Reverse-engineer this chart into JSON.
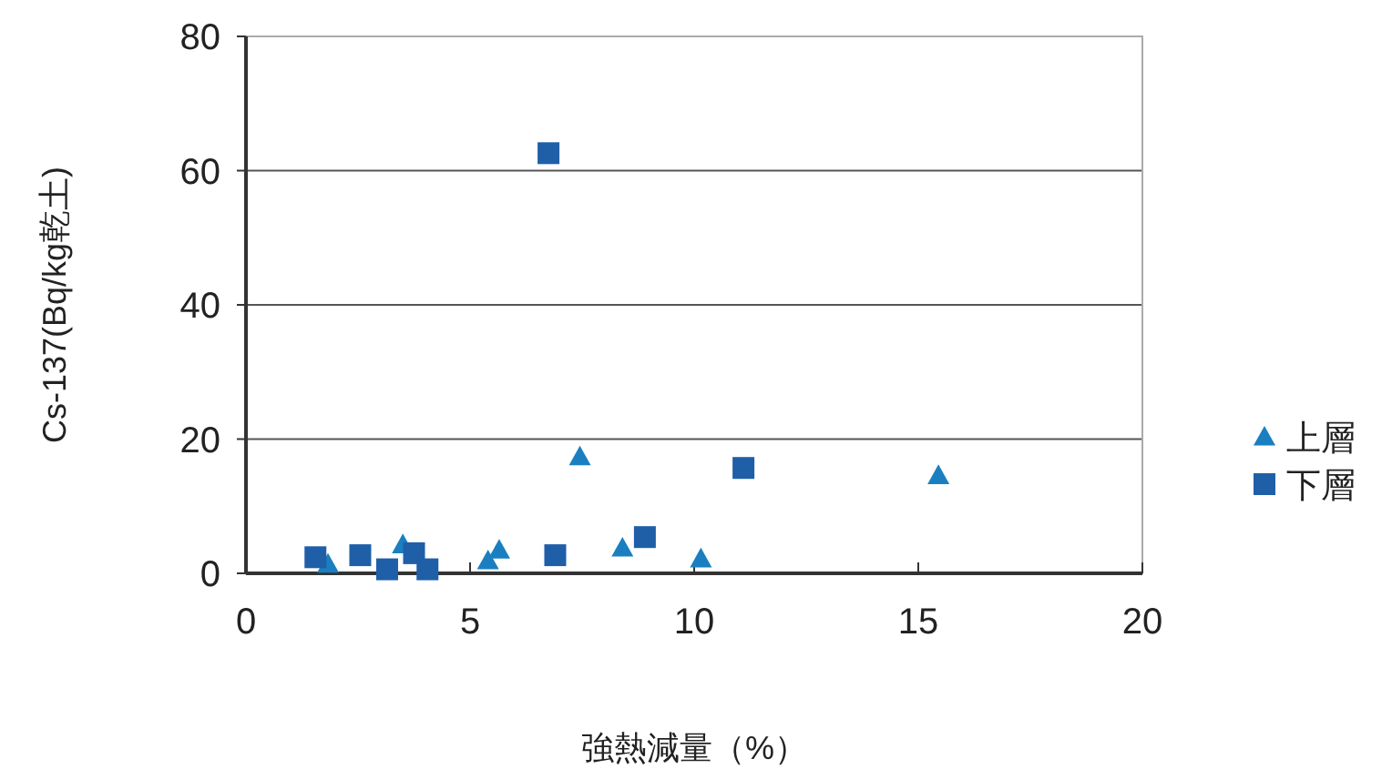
{
  "chart_data": {
    "type": "scatter",
    "xlabel": "強熱減量（%）",
    "ylabel": "Cs-137(Bq/kg乾土)",
    "xlim": [
      0,
      20
    ],
    "ylim": [
      0,
      80
    ],
    "xticks": [
      0,
      5,
      10,
      15,
      20
    ],
    "yticks": [
      0,
      20,
      40,
      60,
      80
    ],
    "grid": "y",
    "legend": "right",
    "series": [
      {
        "name": "上層",
        "color": "#1a7fc0",
        "marker": "triangle",
        "x": [
          1.83,
          3.5,
          5.4,
          5.65,
          7.45,
          8.4,
          10.15,
          15.45
        ],
        "values": [
          1.4,
          4.3,
          1.9,
          3.5,
          17.4,
          3.8,
          2.2,
          14.6
        ]
      },
      {
        "name": "下層",
        "color": "#1f5fa8",
        "marker": "square",
        "x": [
          1.55,
          2.55,
          3.15,
          3.75,
          4.05,
          6.9,
          8.9,
          6.75,
          11.1
        ],
        "values": [
          2.4,
          2.7,
          0.6,
          3.0,
          0.6,
          2.7,
          5.4,
          62.6,
          15.7
        ]
      }
    ]
  }
}
